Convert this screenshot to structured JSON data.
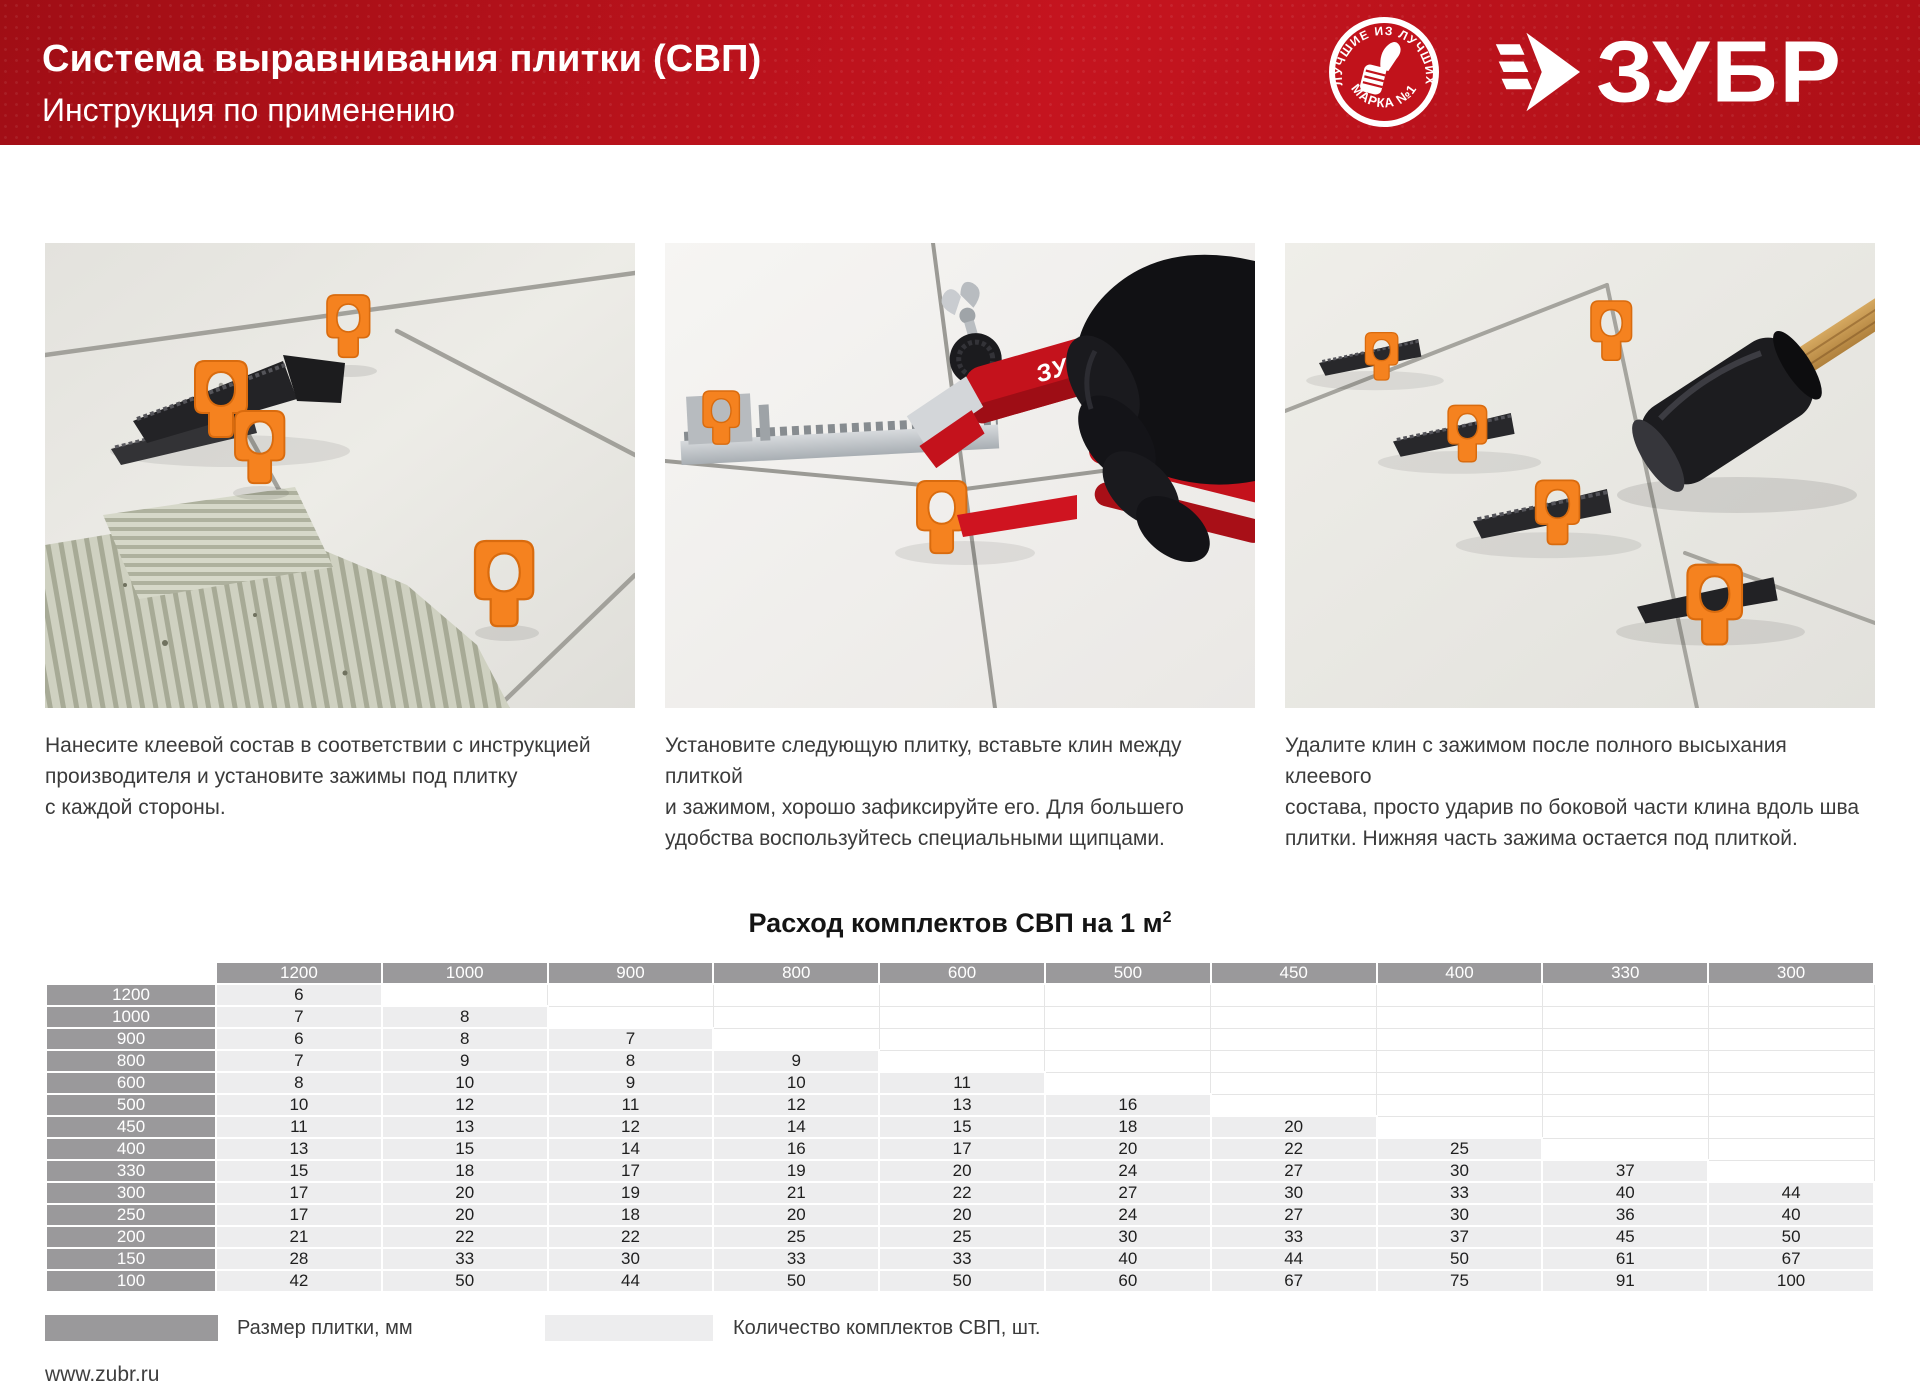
{
  "colors": {
    "accent_red": "#b51219",
    "red_dark": "#a00e15",
    "red_bright": "#c5141f",
    "table_gray": "#9a999b",
    "cell_light": "#ededee",
    "clip_orange": "#f5821f",
    "text_dark": "#3b3b3b"
  },
  "header": {
    "title": "Система выравнивания плитки (СВП)",
    "subtitle": "Инструкция по применению",
    "badge": {
      "arc_top": "ЛУЧШИЕ ИЗ ЛУЧШИХ",
      "arc_bottom": "МАРКА №1"
    },
    "brand": "ЗУБР"
  },
  "steps": [
    {
      "caption": "Нанесите клеевой состав в соответствии с инструкцией\nпроизводителя и установите зажимы под плитку\nс каждой стороны."
    },
    {
      "caption": "Установите следующую плитку, вставьте клин между плиткой\nи зажимом, хорошо зафиксируйте его. Для большего\nудобства воспользуйтесь специальными щипцами."
    },
    {
      "caption": "Удалите клин с зажимом после полного высыхания клеевого\nсостава, просто ударив по боковой части клина вдоль шва\nплитки. Нижняя часть зажима остается под плиткой."
    }
  ],
  "table": {
    "title": "Расход комплектов СВП на 1 м",
    "title_sup": "2",
    "columns_count": 10,
    "col_headers": [
      "1200",
      "1000",
      "900",
      "800",
      "600",
      "500",
      "450",
      "400",
      "330",
      "300"
    ],
    "rows": [
      {
        "label": "1200",
        "values": [
          6
        ]
      },
      {
        "label": "1000",
        "values": [
          7,
          8
        ]
      },
      {
        "label": "900",
        "values": [
          6,
          8,
          7
        ]
      },
      {
        "label": "800",
        "values": [
          7,
          9,
          8,
          9
        ]
      },
      {
        "label": "600",
        "values": [
          8,
          10,
          9,
          10,
          11
        ]
      },
      {
        "label": "500",
        "values": [
          10,
          12,
          11,
          12,
          13,
          16
        ]
      },
      {
        "label": "450",
        "values": [
          11,
          13,
          12,
          14,
          15,
          18,
          20
        ]
      },
      {
        "label": "400",
        "values": [
          13,
          15,
          14,
          16,
          17,
          20,
          22,
          25
        ]
      },
      {
        "label": "330",
        "values": [
          15,
          18,
          17,
          19,
          20,
          24,
          27,
          30,
          37
        ]
      },
      {
        "label": "300",
        "values": [
          17,
          20,
          19,
          21,
          22,
          27,
          30,
          33,
          40,
          44
        ]
      },
      {
        "label": "250",
        "values": [
          17,
          20,
          18,
          20,
          20,
          24,
          27,
          30,
          36,
          40
        ]
      },
      {
        "label": "200",
        "values": [
          21,
          22,
          22,
          25,
          25,
          30,
          33,
          37,
          45,
          50
        ]
      },
      {
        "label": "150",
        "values": [
          28,
          33,
          30,
          33,
          33,
          40,
          44,
          50,
          61,
          67
        ]
      },
      {
        "label": "100",
        "values": [
          42,
          50,
          44,
          50,
          50,
          60,
          67,
          75,
          91,
          100
        ]
      }
    ]
  },
  "legend": {
    "tile_size_label": "Размер плитки, мм",
    "kit_count_label": "Количество комплектов СВП, шт."
  },
  "footer": {
    "url": "www.zubr.ru"
  }
}
